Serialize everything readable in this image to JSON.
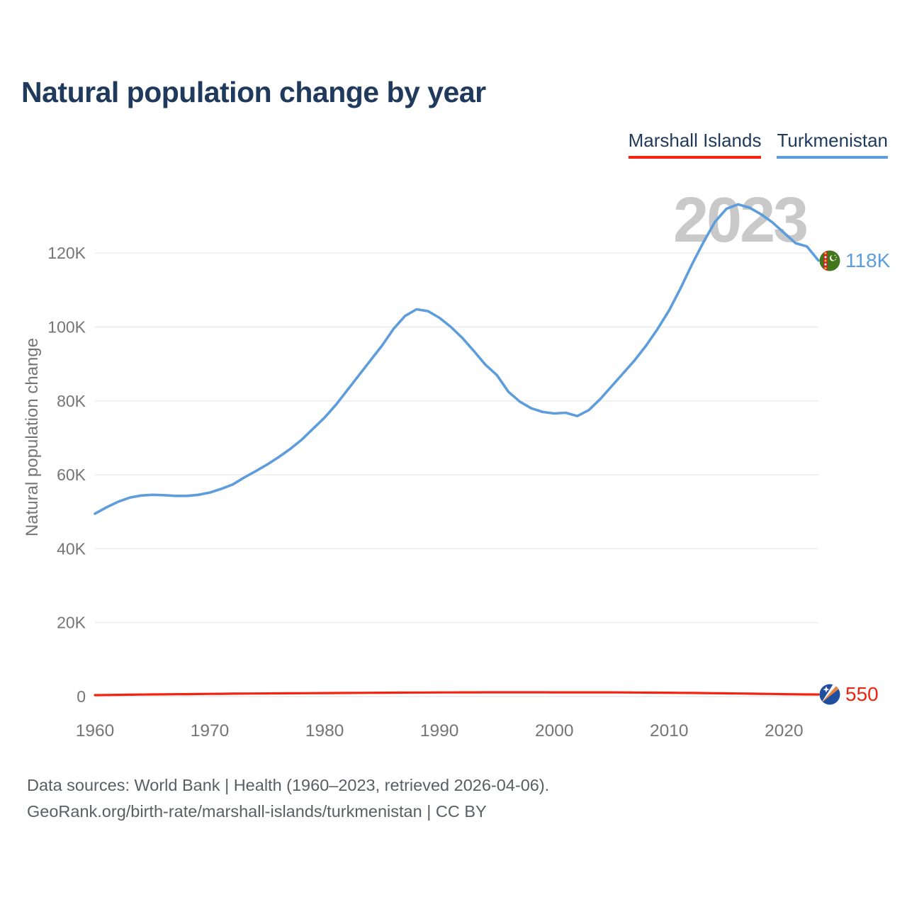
{
  "header": {
    "title": "Natural population change by year"
  },
  "legend": {
    "items": [
      {
        "label": "Marshall Islands",
        "color": "#f2230f"
      },
      {
        "label": "Turkmenistan",
        "color": "#5d9ddb"
      }
    ]
  },
  "colors": {
    "marshall_islands": "#f2230f",
    "turkmenistan": "#5d9ddb",
    "title_text": "#1f3a5c",
    "watermark": "#c9c9c9",
    "axis_text": "#757575",
    "gridline": "#ebebeb"
  },
  "footer": {
    "line1": "Data sources: World Bank | Health (1960–2023, retrieved 2026-04-06).",
    "line2": "GeoRank.org/birth-rate/marshall-islands/turkmenistan | CC BY"
  },
  "chart_data": {
    "type": "line",
    "title": "Natural population change by year",
    "xlabel": "",
    "ylabel": "Natural population change",
    "watermark": "2023",
    "grid": true,
    "legend_position": "top-right",
    "xlim": [
      1960,
      2023
    ],
    "ylim": [
      0,
      133200
    ],
    "x_ticks": [
      1960,
      1970,
      1980,
      1990,
      2000,
      2010,
      2020
    ],
    "y_ticks": [
      {
        "label": "0",
        "value": 0
      },
      {
        "label": "20K",
        "value": 20000
      },
      {
        "label": "40K",
        "value": 40000
      },
      {
        "label": "60K",
        "value": 60000
      },
      {
        "label": "80K",
        "value": 80000
      },
      {
        "label": "100K",
        "value": 100000
      },
      {
        "label": "120K",
        "value": 120000
      }
    ],
    "x": [
      1960,
      1961,
      1962,
      1963,
      1964,
      1965,
      1966,
      1967,
      1968,
      1969,
      1970,
      1971,
      1972,
      1973,
      1974,
      1975,
      1976,
      1977,
      1978,
      1979,
      1980,
      1981,
      1982,
      1983,
      1984,
      1985,
      1986,
      1987,
      1988,
      1989,
      1990,
      1991,
      1992,
      1993,
      1994,
      1995,
      1996,
      1997,
      1998,
      1999,
      2000,
      2001,
      2002,
      2003,
      2004,
      2005,
      2006,
      2007,
      2008,
      2009,
      2010,
      2011,
      2012,
      2013,
      2014,
      2015,
      2016,
      2017,
      2018,
      2019,
      2020,
      2021,
      2022,
      2023
    ],
    "series": [
      {
        "name": "Marshall Islands",
        "color": "#f2230f",
        "values": [
          380,
          420,
          460,
          500,
          540,
          570,
          600,
          630,
          660,
          690,
          720,
          750,
          780,
          800,
          820,
          840,
          860,
          880,
          900,
          920,
          940,
          960,
          980,
          1000,
          1020,
          1040,
          1060,
          1080,
          1090,
          1100,
          1110,
          1120,
          1130,
          1140,
          1150,
          1150,
          1150,
          1150,
          1150,
          1150,
          1140,
          1140,
          1140,
          1140,
          1140,
          1130,
          1120,
          1100,
          1080,
          1060,
          1030,
          1000,
          970,
          940,
          900,
          860,
          820,
          780,
          740,
          700,
          660,
          620,
          580,
          550
        ]
      },
      {
        "name": "Turkmenistan",
        "color": "#5d9ddb",
        "values": [
          49500,
          51200,
          52700,
          53800,
          54400,
          54600,
          54500,
          54300,
          54300,
          54600,
          55200,
          56200,
          57400,
          59300,
          61000,
          62800,
          64800,
          67000,
          69500,
          72500,
          75500,
          79000,
          83000,
          87000,
          91000,
          95000,
          99500,
          103000,
          104800,
          104300,
          102500,
          100000,
          97000,
          93500,
          89800,
          87000,
          82500,
          79800,
          78000,
          77000,
          76600,
          76800,
          75900,
          77500,
          80500,
          84000,
          87500,
          91000,
          95000,
          99500,
          104500,
          110500,
          117000,
          123000,
          128500,
          132000,
          133200,
          132300,
          130500,
          128300,
          125500,
          122700,
          121800,
          118000
        ]
      }
    ],
    "end_labels": {
      "turkmenistan": "118K",
      "marshall_islands": "550"
    }
  }
}
